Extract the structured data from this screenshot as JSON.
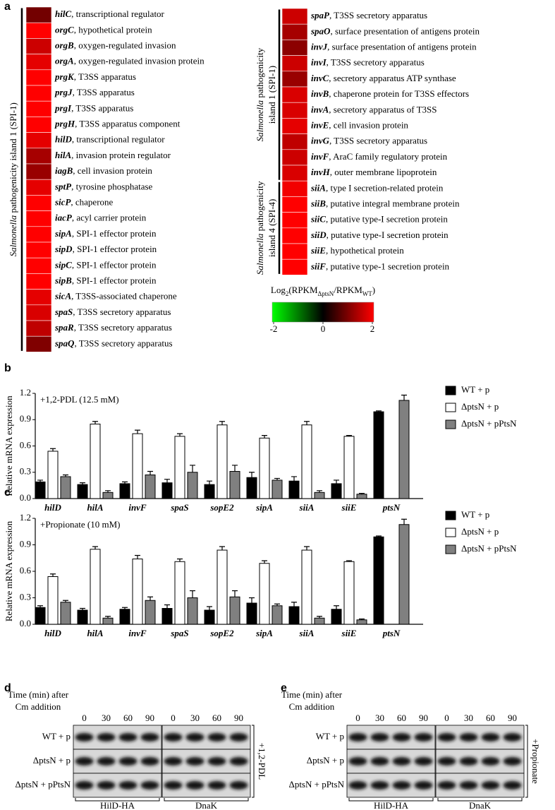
{
  "panel_labels": [
    "a",
    "b",
    "c",
    "d",
    "e"
  ],
  "colorbar": {
    "title_parts": [
      {
        "text": "Log"
      },
      {
        "text": "2",
        "sub": true
      },
      {
        "text": "(RPKM"
      },
      {
        "text": "ΔptsN",
        "sub": true
      },
      {
        "text": "/RPKM"
      },
      {
        "text": "WT",
        "sub": true
      },
      {
        "text": ")"
      }
    ],
    "lim": [
      -2,
      2
    ],
    "ticks": [
      -2,
      0,
      2
    ],
    "colors": [
      "#00ff00",
      "#000000",
      "#ff0000"
    ]
  },
  "chart_data": [
    {
      "type": "heatmap",
      "groups": [
        {
          "label_lines": [
            [
              {
                "text": "Salmonella",
                "italic": true
              },
              {
                "text": " pathogenicity island 1 (SPI-1)"
              }
            ]
          ],
          "rows": [
            {
              "gene": "hilC",
              "desc": ", transcriptional regulator"
            },
            {
              "gene": "orgC",
              "desc": ", hypothetical protein"
            },
            {
              "gene": "orgB",
              "desc": ", oxygen-regulated invasion"
            },
            {
              "gene": "orgA",
              "desc": ", oxygen-regulated invasion protein"
            },
            {
              "gene": "prgK",
              "desc": ", T3SS apparatus"
            },
            {
              "gene": "prgJ",
              "desc": ", T3SS apparatus"
            },
            {
              "gene": "prgI",
              "desc": ", T3SS apparatus"
            },
            {
              "gene": "prgH",
              "desc": ", T3SS apparatus component"
            },
            {
              "gene": "hilD",
              "desc": ", transcriptional regulator"
            },
            {
              "gene": "hilA",
              "desc": ", invasion protein regulator"
            },
            {
              "gene": "iagB",
              "desc": ", cell invasion protein"
            },
            {
              "gene": "sptP",
              "desc": ", tyrosine phosphatase"
            },
            {
              "gene": "sicP",
              "desc": ", chaperone"
            },
            {
              "gene": "iacP",
              "desc": ", acyl carrier protein"
            },
            {
              "gene": "sipA",
              "desc": ", SPI-1 effector protein"
            },
            {
              "gene": "sipD",
              "desc": ", SPI-1 effector protein"
            },
            {
              "gene": "sipC",
              "desc": ", SPI-1 effector protein"
            },
            {
              "gene": "sipB",
              "desc": ", SPI-1 effector protein"
            },
            {
              "gene": "sicA",
              "desc": ", T3SS-associated chaperone"
            },
            {
              "gene": "spaS",
              "desc": ", T3SS secretory apparatus"
            },
            {
              "gene": "spaR",
              "desc": ", T3SS secretory apparatus"
            },
            {
              "gene": "spaQ",
              "desc": ", T3SS secretory apparatus"
            }
          ],
          "values": [
            0.9,
            2,
            1.6,
            1.8,
            2,
            2,
            2,
            2,
            1.8,
            1.3,
            1.2,
            1.8,
            2,
            2,
            2,
            2,
            2,
            2,
            1.8,
            1.7,
            1.5,
            1.0
          ]
        }
      ]
    },
    {
      "type": "heatmap",
      "groups": [
        {
          "label_lines": [
            [
              {
                "text": "Salmonella",
                "italic": true
              },
              {
                "text": " pathogenicity"
              }
            ],
            [
              {
                "text": "island 1 (SPI-1)"
              }
            ]
          ],
          "rows": [
            {
              "gene": "spaP",
              "desc": ", T3SS secretory apparatus"
            },
            {
              "gene": "spaO",
              "desc": ", surface presentation of antigens protein"
            },
            {
              "gene": "invJ",
              "desc": ", surface presentation of antigens protein"
            },
            {
              "gene": "invI",
              "desc": ", T3SS secretory apparatus"
            },
            {
              "gene": "invC",
              "desc": ", secretory apparatus ATP synthase"
            },
            {
              "gene": "invB",
              "desc": ", chaperone protein for T3SS effectors"
            },
            {
              "gene": "invA",
              "desc": ", secretory apparatus of T3SS"
            },
            {
              "gene": "invE",
              "desc": ", cell invasion protein"
            },
            {
              "gene": "invG",
              "desc": ", T3SS secretory apparatus"
            },
            {
              "gene": "invF",
              "desc": ", AraC family regulatory protein"
            },
            {
              "gene": "invH",
              "desc": ", outer membrane lipoprotein"
            }
          ],
          "values": [
            1.6,
            1.3,
            1.1,
            1.6,
            1.2,
            1.7,
            1.7,
            1.8,
            1.5,
            1.6,
            1.7
          ]
        },
        {
          "label_lines": [
            [
              {
                "text": "Salmonella",
                "italic": true
              },
              {
                "text": " pathogenicity"
              }
            ],
            [
              {
                "text": "island 4 (SPI-4)"
              }
            ]
          ],
          "rows": [
            {
              "gene": "siiA",
              "desc": ", type I secretion-related protein"
            },
            {
              "gene": "siiB",
              "desc": ", putative integral membrane protein"
            },
            {
              "gene": "siiC",
              "desc": ", putative type-I secretion protein"
            },
            {
              "gene": "siiD",
              "desc": ", putative type-I secretion protein"
            },
            {
              "gene": "siiE",
              "desc": ", hypothetical protein"
            },
            {
              "gene": "siiF",
              "desc": ", putative type-1 secretion protein"
            }
          ],
          "values": [
            1.9,
            2,
            2,
            2,
            2,
            2
          ]
        }
      ]
    },
    {
      "type": "bar",
      "annotation": "+1,2-PDL (12.5 mM)",
      "ylabel": "Relative mRNA expression",
      "categories": [
        "hilD",
        "hilA",
        "invF",
        "spaS",
        "sopE2",
        "sipA",
        "siiA",
        "siiE",
        "ptsN"
      ],
      "ylim": [
        0,
        1.2
      ],
      "yticks": [
        {
          "value": 0,
          "label": "0.0"
        },
        0.3,
        0.6,
        0.9,
        1.2
      ],
      "series": [
        {
          "name": "WT + p",
          "color": "#000000",
          "values": [
            0.19,
            0.16,
            0.17,
            0.18,
            0.16,
            0.24,
            0.2,
            0.17,
            0.99
          ],
          "errors": [
            0.02,
            0.02,
            0.02,
            0.04,
            0.04,
            0.06,
            0.05,
            0.04,
            0.01
          ]
        },
        {
          "name": "ΔptsN + p",
          "color": "#ffffff",
          "values": [
            0.54,
            0.85,
            0.74,
            0.71,
            0.84,
            0.69,
            0.84,
            0.71,
            null
          ],
          "errors": [
            0.03,
            0.03,
            0.04,
            0.03,
            0.04,
            0.03,
            0.04,
            0.01,
            null
          ]
        },
        {
          "name": "ΔptsN + pPtsN",
          "color": "#808080",
          "values": [
            0.25,
            0.07,
            0.27,
            0.3,
            0.31,
            0.21,
            0.07,
            0.05,
            1.12
          ],
          "errors": [
            0.02,
            0.02,
            0.04,
            0.08,
            0.07,
            0.02,
            0.02,
            0.01,
            0.06
          ]
        }
      ]
    },
    {
      "type": "bar",
      "annotation": "+Propionate (10 mM)",
      "ylabel": "Relative mRNA expression",
      "categories": [
        "hilD",
        "hilA",
        "invF",
        "spaS",
        "sopE2",
        "sipA",
        "siiA",
        "siiE",
        "ptsN"
      ],
      "ylim": [
        0,
        1.2
      ],
      "yticks": [
        {
          "value": 0,
          "label": "0.0"
        },
        0.3,
        0.6,
        0.9,
        1.2
      ],
      "series": [
        {
          "name": "WT + p",
          "color": "#000000",
          "values": [
            0.19,
            0.16,
            0.17,
            0.18,
            0.16,
            0.24,
            0.2,
            0.17,
            0.99
          ],
          "errors": [
            0.02,
            0.02,
            0.02,
            0.04,
            0.04,
            0.06,
            0.05,
            0.04,
            0.01
          ]
        },
        {
          "name": "ΔptsN + p",
          "color": "#ffffff",
          "values": [
            0.54,
            0.85,
            0.74,
            0.71,
            0.84,
            0.69,
            0.84,
            0.71,
            null
          ],
          "errors": [
            0.03,
            0.03,
            0.04,
            0.03,
            0.04,
            0.03,
            0.04,
            0.01,
            null
          ]
        },
        {
          "name": "ΔptsN + pPtsN",
          "color": "#808080",
          "values": [
            0.25,
            0.07,
            0.27,
            0.3,
            0.31,
            0.21,
            0.07,
            0.05,
            1.13
          ],
          "errors": [
            0.02,
            0.02,
            0.04,
            0.08,
            0.07,
            0.02,
            0.02,
            0.01,
            0.06
          ]
        }
      ]
    }
  ],
  "blots": [
    {
      "header_lines": [
        "Time (min) after",
        "Cm addition"
      ],
      "condition": "+1,2-PDL",
      "rows": [
        "WT + p",
        "ΔptsN + p",
        "ΔptsN + pPtsN"
      ],
      "groups": [
        {
          "name": "HilD-HA",
          "times": [
            0,
            30,
            60,
            90
          ]
        },
        {
          "name": "DnaK",
          "times": [
            0,
            30,
            60,
            90
          ]
        }
      ]
    },
    {
      "header_lines": [
        "Time (min) after",
        "Cm addition"
      ],
      "condition": "+Propionate",
      "rows": [
        "WT + p",
        "ΔptsN + p",
        "ΔptsN + pPtsN"
      ],
      "groups": [
        {
          "name": "HilD-HA",
          "times": [
            0,
            30,
            60,
            90
          ]
        },
        {
          "name": "DnaK",
          "times": [
            0,
            30,
            60,
            90
          ]
        }
      ]
    }
  ]
}
